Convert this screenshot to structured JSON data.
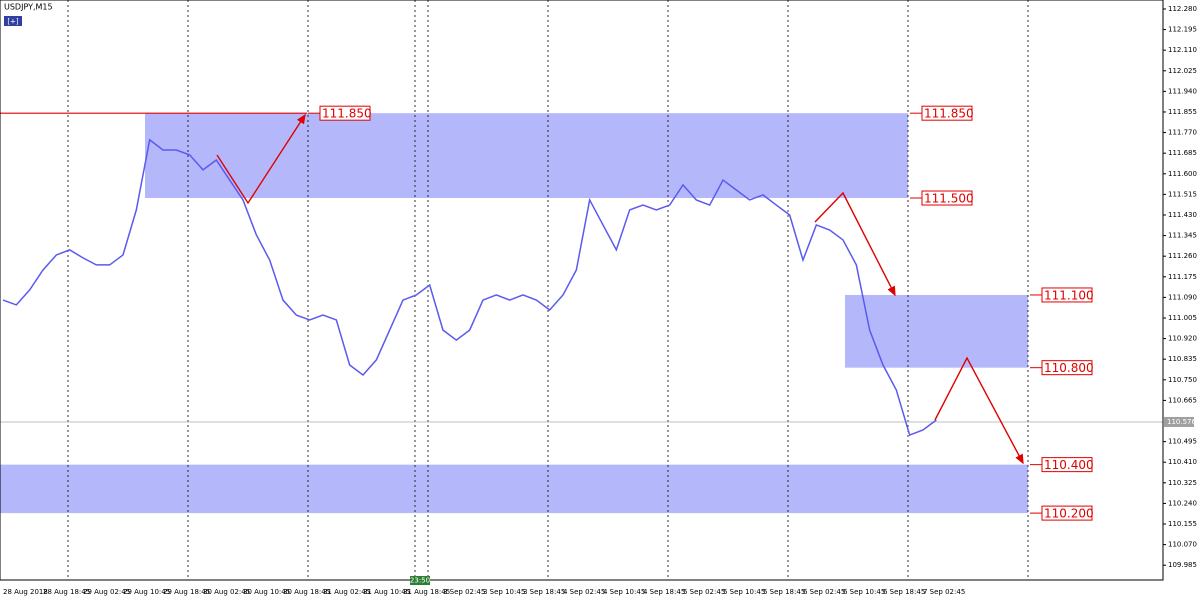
{
  "chart_data": {
    "type": "line",
    "title": "USDJPY,M15",
    "button": "[+]",
    "cursor_time": "23:50",
    "color": "#5a5af0",
    "categories": [
      "28 Aug 2018",
      null,
      null,
      "28 Aug 18:45",
      null,
      null,
      "29 Aug 02:45",
      null,
      null,
      "29 Aug 10:45",
      null,
      null,
      "29 Aug 18:45",
      null,
      null,
      "30 Aug 02:45",
      null,
      null,
      "30 Aug 10:45",
      null,
      null,
      "30 Aug 18:45",
      null,
      null,
      "31 Aug 02:45",
      null,
      null,
      "31 Aug 10:45",
      null,
      null,
      "31 Aug 18:45",
      null,
      null,
      "3 Sep 02:45",
      null,
      null,
      "3 Sep 10:45",
      null,
      null,
      "3 Sep 18:45",
      null,
      null,
      "4 Sep 02:45",
      null,
      null,
      "4 Sep 10:45",
      null,
      null,
      "4 Sep 18:45",
      null,
      null,
      "5 Sep 02:45",
      null,
      null,
      "5 Sep 10:45",
      null,
      null,
      "5 Sep 18:45",
      null,
      null,
      "6 Sep 02:45",
      null,
      null,
      "6 Sep 10:45",
      null,
      null,
      "6 Sep 18:45",
      null,
      null,
      "7 Sep 02:45",
      null
    ],
    "values": [
      111.079,
      111.059,
      111.121,
      111.203,
      111.265,
      111.286,
      111.253,
      111.224,
      111.224,
      111.265,
      111.451,
      111.74,
      111.698,
      111.698,
      111.678,
      111.616,
      111.657,
      111.574,
      111.492,
      111.348,
      111.244,
      111.079,
      111.017,
      110.997,
      111.017,
      110.997,
      110.811,
      110.77,
      110.832,
      110.955,
      111.079,
      111.1,
      111.141,
      110.955,
      110.914,
      110.955,
      111.079,
      111.1,
      111.079,
      111.1,
      111.079,
      111.038,
      111.1,
      111.203,
      111.492,
      111.389,
      111.286,
      111.451,
      111.471,
      111.451,
      111.471,
      111.554,
      111.492,
      111.471,
      111.574,
      111.533,
      111.492,
      111.513,
      111.471,
      111.43,
      111.244,
      111.389,
      111.368,
      111.327,
      111.224,
      110.955,
      110.811,
      110.708,
      110.522,
      110.543,
      110.584
    ],
    "ylim": [
      109.924,
      112.317
    ],
    "yticks": [
      {
        "value": 112.28,
        "label": "112.280"
      },
      112.195,
      {
        "value": 112.11,
        "label": "112.110"
      },
      112.025,
      {
        "value": 111.94,
        "label": "111.940"
      },
      111.855,
      {
        "value": 111.77,
        "label": "111.770"
      },
      111.685,
      {
        "value": 111.6,
        "label": "111.600"
      },
      111.515,
      {
        "value": 111.43,
        "label": "111.430"
      },
      111.345,
      {
        "value": 111.26,
        "label": "111.260"
      },
      111.175,
      {
        "value": 111.09,
        "label": "111.090"
      },
      111.005,
      {
        "value": 110.92,
        "label": "110.920"
      },
      110.835,
      {
        "value": 110.75,
        "label": "110.750"
      },
      110.665,
      110.495,
      {
        "value": 110.41,
        "label": "110.410"
      },
      110.325,
      {
        "value": 110.24,
        "label": "110.240"
      },
      110.155,
      {
        "value": 110.07,
        "label": "110.070"
      },
      109.985
    ],
    "current_price": 110.576,
    "hline": {
      "value": 111.85,
      "label": "111.850"
    },
    "zones": [
      {
        "high": {
          "value": 111.85,
          "label": "111.850"
        },
        "low": {
          "value": 111.5,
          "label": "111.500"
        }
      },
      {
        "high": {
          "value": 111.1,
          "label": "111.100"
        },
        "low": {
          "value": 110.8,
          "label": "110.800"
        }
      },
      {
        "high": {
          "value": 110.4,
          "label": "110.400"
        },
        "low": {
          "value": 110.2,
          "label": "110.200"
        }
      }
    ]
  }
}
